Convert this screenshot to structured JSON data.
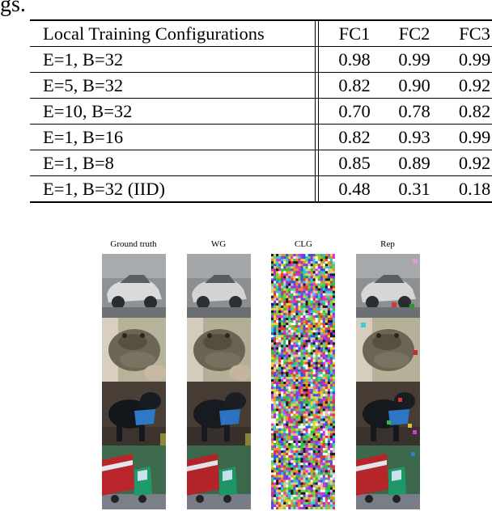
{
  "fragment_text": "gs.",
  "table": {
    "headers": [
      "Local Training Configurations",
      "FC1",
      "FC2",
      "FC3"
    ],
    "rows": [
      {
        "config": "E=1, B=32",
        "fc1": "0.98",
        "fc2": "0.99",
        "fc3": "0.99"
      },
      {
        "config": "E=5, B=32",
        "fc1": "0.82",
        "fc2": "0.90",
        "fc3": "0.92"
      },
      {
        "config": "E=10, B=32",
        "fc1": "0.70",
        "fc2": "0.78",
        "fc3": "0.82"
      },
      {
        "config": "E=1, B=16",
        "fc1": "0.82",
        "fc2": "0.93",
        "fc3": "0.99"
      },
      {
        "config": "E=1, B=8",
        "fc1": "0.85",
        "fc2": "0.89",
        "fc3": "0.92"
      },
      {
        "config": "E=1, B=32 (IID)",
        "fc1": "0.48",
        "fc2": "0.31",
        "fc3": "0.18"
      }
    ]
  },
  "figure": {
    "columns": [
      "Ground truth",
      "WG",
      "CLG",
      "Rep"
    ],
    "rows": [
      "car",
      "frog",
      "dog",
      "truck"
    ]
  }
}
